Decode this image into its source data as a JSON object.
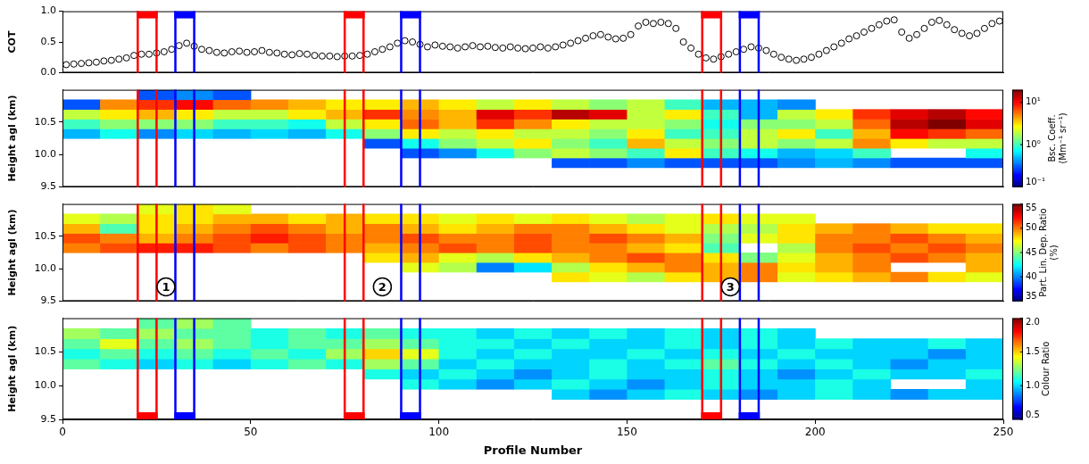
{
  "chart_data": [
    {
      "type": "scatter",
      "y_label": "COT",
      "tick_labels": "y",
      "marker": "circle",
      "color": "#000000",
      "xlim": [
        0,
        250
      ],
      "xticks": [
        0,
        50,
        100,
        150,
        200,
        250
      ],
      "ylim": [
        0,
        1
      ],
      "yticks": [
        {
          "value": 0,
          "label": "0.0"
        },
        0.5,
        {
          "value": 1,
          "label": "1.0"
        }
      ],
      "x": [
        1,
        3,
        5,
        7,
        9,
        11,
        13,
        15,
        17,
        19,
        21,
        23,
        25,
        27,
        29,
        31,
        33,
        35,
        37,
        39,
        41,
        43,
        45,
        47,
        49,
        51,
        53,
        55,
        57,
        59,
        61,
        63,
        65,
        67,
        69,
        71,
        73,
        75,
        77,
        79,
        81,
        83,
        85,
        87,
        89,
        91,
        93,
        95,
        97,
        99,
        101,
        103,
        105,
        107,
        109,
        111,
        113,
        115,
        117,
        119,
        121,
        123,
        125,
        127,
        129,
        131,
        133,
        135,
        137,
        139,
        141,
        143,
        145,
        147,
        149,
        151,
        153,
        155,
        157,
        159,
        161,
        163,
        165,
        167,
        169,
        171,
        173,
        175,
        177,
        179,
        181,
        183,
        185,
        187,
        189,
        191,
        193,
        195,
        197,
        199,
        201,
        203,
        205,
        207,
        209,
        211,
        213,
        215,
        217,
        219,
        221,
        223,
        225,
        227,
        229,
        231,
        233,
        235,
        237,
        239,
        241,
        243,
        245,
        247,
        249
      ],
      "values": [
        0.13,
        0.14,
        0.15,
        0.16,
        0.17,
        0.19,
        0.2,
        0.22,
        0.24,
        0.28,
        0.3,
        0.3,
        0.32,
        0.34,
        0.38,
        0.44,
        0.48,
        0.43,
        0.38,
        0.36,
        0.33,
        0.32,
        0.34,
        0.35,
        0.33,
        0.34,
        0.36,
        0.33,
        0.32,
        0.3,
        0.29,
        0.31,
        0.3,
        0.28,
        0.27,
        0.27,
        0.26,
        0.27,
        0.27,
        0.28,
        0.3,
        0.34,
        0.38,
        0.42,
        0.48,
        0.52,
        0.5,
        0.46,
        0.42,
        0.45,
        0.43,
        0.42,
        0.4,
        0.42,
        0.44,
        0.42,
        0.43,
        0.41,
        0.4,
        0.42,
        0.4,
        0.39,
        0.4,
        0.42,
        0.4,
        0.42,
        0.45,
        0.48,
        0.52,
        0.56,
        0.6,
        0.62,
        0.58,
        0.55,
        0.56,
        0.62,
        0.76,
        0.82,
        0.8,
        0.82,
        0.8,
        0.72,
        0.5,
        0.4,
        0.3,
        0.24,
        0.22,
        0.26,
        0.3,
        0.34,
        0.38,
        0.42,
        0.4,
        0.36,
        0.3,
        0.25,
        0.22,
        0.2,
        0.22,
        0.25,
        0.3,
        0.36,
        0.42,
        0.48,
        0.55,
        0.6,
        0.66,
        0.72,
        0.78,
        0.84,
        0.86,
        0.66,
        0.56,
        0.62,
        0.72,
        0.82,
        0.85,
        0.78,
        0.7,
        0.64,
        0.6,
        0.64,
        0.72,
        0.8,
        0.84
      ]
    },
    {
      "type": "heatmap",
      "y_label": "Height agl (km)",
      "tick_labels": "y",
      "xlim": [
        0,
        250
      ],
      "xticks": [
        0,
        50,
        100,
        150,
        200,
        250
      ],
      "ylim": [
        9.5,
        11.0
      ],
      "yticks": [
        9.5,
        {
          "value": 10,
          "label": "10.0"
        },
        10.5
      ],
      "x_bins": [
        0,
        10,
        20,
        30,
        40,
        50,
        60,
        70,
        80,
        90,
        100,
        110,
        120,
        130,
        140,
        150,
        160,
        170,
        180,
        190,
        200,
        210,
        220,
        230,
        240,
        250
      ],
      "y_bins": [
        9.8,
        9.95,
        10.1,
        10.25,
        10.4,
        10.55,
        10.7,
        10.85,
        11.0
      ],
      "cells": [
        [
          null,
          null,
          null,
          null,
          null,
          null,
          null,
          null,
          null,
          null,
          null,
          null,
          null,
          0.3,
          0.3,
          0.4,
          0.3,
          0.3,
          0.3,
          0.4,
          0.5,
          0.4,
          0.3,
          0.3,
          0.3
        ],
        [
          null,
          null,
          null,
          null,
          null,
          null,
          null,
          null,
          null,
          0.3,
          0.4,
          0.8,
          1.5,
          2,
          1.5,
          1,
          3,
          1,
          0.8,
          0.5,
          0.6,
          1,
          null,
          null,
          0.8
        ],
        [
          null,
          null,
          null,
          null,
          null,
          null,
          null,
          null,
          0.3,
          0.8,
          1.5,
          2,
          3,
          1.5,
          1,
          4,
          2,
          1.5,
          2,
          1.5,
          2,
          5,
          3,
          2,
          2
        ],
        [
          0.5,
          0.8,
          0.4,
          0.6,
          0.5,
          0.6,
          0.5,
          0.8,
          1.5,
          3,
          2,
          3,
          2,
          2,
          1.5,
          3,
          1,
          1,
          2,
          3,
          1,
          4,
          10,
          8,
          6
        ],
        [
          1,
          1.5,
          1.5,
          1.5,
          1,
          1,
          0.8,
          2,
          3,
          6,
          4,
          8,
          5,
          3,
          2,
          2,
          1.5,
          0.8,
          1.5,
          1.5,
          2,
          6,
          15,
          20,
          12
        ],
        [
          2,
          3,
          4,
          3,
          2,
          2,
          3,
          4,
          8,
          5,
          4,
          12,
          8,
          15,
          12,
          2,
          3,
          1,
          0.5,
          2,
          3,
          8,
          12,
          15,
          10
        ],
        [
          0.3,
          5,
          8,
          10,
          6,
          5,
          4,
          3,
          3,
          4,
          3,
          2,
          3,
          2,
          1.5,
          2,
          1,
          0.5,
          0.5,
          0.4,
          null,
          null,
          null,
          null,
          null
        ],
        [
          null,
          null,
          0.3,
          0.4,
          0.3,
          null,
          null,
          null,
          null,
          null,
          null,
          null,
          null,
          null,
          null,
          null,
          null,
          null,
          null,
          null,
          null,
          null,
          null,
          null,
          null
        ]
      ],
      "colorbar": {
        "label": "Bsc. Coeff. (Mm⁻¹ sr⁻¹)",
        "log": true,
        "range": [
          0.1,
          20
        ],
        "ticks": [
          {
            "value": 0.1,
            "label": "10⁻¹"
          },
          {
            "value": 1,
            "label": "10⁰"
          },
          {
            "value": 10,
            "label": "10¹"
          }
        ]
      }
    },
    {
      "type": "heatmap",
      "y_label": "Height agl (km)",
      "tick_labels": "y",
      "xlim": [
        0,
        250
      ],
      "xticks": [
        0,
        50,
        100,
        150,
        200,
        250
      ],
      "ylim": [
        9.5,
        11.0
      ],
      "yticks": [
        9.5,
        {
          "value": 10,
          "label": "10.0"
        },
        10.5
      ],
      "x_bins": [
        0,
        10,
        20,
        30,
        40,
        50,
        60,
        70,
        80,
        90,
        100,
        110,
        120,
        130,
        140,
        150,
        160,
        170,
        180,
        190,
        200,
        210,
        220,
        230,
        240,
        250
      ],
      "y_bins": [
        9.8,
        9.95,
        10.1,
        10.25,
        10.4,
        10.55,
        10.7,
        10.85,
        11.0
      ],
      "cells": [
        [
          null,
          null,
          null,
          null,
          null,
          null,
          null,
          null,
          null,
          null,
          null,
          null,
          null,
          48,
          47,
          46,
          48,
          49,
          50,
          47,
          48,
          49,
          50,
          48,
          47
        ],
        [
          null,
          null,
          null,
          null,
          null,
          null,
          null,
          null,
          null,
          47,
          46,
          40,
          42,
          46,
          48,
          49,
          50,
          49,
          50,
          48,
          49,
          50,
          null,
          null,
          49
        ],
        [
          null,
          null,
          null,
          null,
          null,
          null,
          null,
          null,
          48,
          49,
          47,
          46,
          48,
          49,
          50,
          51,
          50,
          48,
          45,
          47,
          49,
          50,
          51,
          50,
          49
        ],
        [
          50,
          51,
          52,
          52,
          51,
          50,
          51,
          50,
          49,
          50,
          51,
          50,
          51,
          50,
          50,
          49,
          48,
          44,
          null,
          46,
          50,
          51,
          50,
          51,
          50
        ],
        [
          51,
          50,
          49,
          50,
          51,
          52,
          51,
          50,
          50,
          51,
          50,
          50,
          51,
          50,
          51,
          50,
          49,
          45,
          47,
          48,
          50,
          50,
          51,
          50,
          49
        ],
        [
          49,
          44,
          48,
          49,
          50,
          51,
          50,
          49,
          50,
          49,
          48,
          49,
          50,
          50,
          49,
          48,
          47,
          46,
          46,
          48,
          49,
          50,
          49,
          48,
          48
        ],
        [
          47,
          46,
          48,
          48,
          49,
          49,
          48,
          49,
          48,
          48,
          47,
          48,
          47,
          48,
          47,
          46,
          47,
          48,
          47,
          47,
          null,
          null,
          null,
          null,
          null
        ],
        [
          null,
          null,
          47,
          48,
          47,
          null,
          null,
          null,
          null,
          null,
          null,
          null,
          null,
          null,
          null,
          null,
          null,
          null,
          null,
          null,
          null,
          null,
          null,
          null,
          null
        ]
      ],
      "annotations": [
        {
          "text": "1",
          "x": 27.5,
          "y": 9.72
        },
        {
          "text": "2",
          "x": 85,
          "y": 9.72
        },
        {
          "text": "3",
          "x": 177.5,
          "y": 9.72
        }
      ],
      "colorbar": {
        "label": "Part. Lin. Dep. Ratio (%)",
        "range": [
          35,
          55
        ],
        "ticks": [
          35,
          40,
          45,
          50,
          55
        ]
      }
    },
    {
      "type": "heatmap",
      "y_label": "Height agl (km)",
      "x_label": "Profile Number",
      "xlim": [
        0,
        250
      ],
      "xticks": [
        0,
        50,
        100,
        150,
        200,
        250
      ],
      "ylim": [
        9.5,
        11.0
      ],
      "yticks": [
        9.5,
        {
          "value": 10,
          "label": "10.0"
        },
        10.5
      ],
      "x_bins": [
        0,
        10,
        20,
        30,
        40,
        50,
        60,
        70,
        80,
        90,
        100,
        110,
        120,
        130,
        140,
        150,
        160,
        170,
        180,
        190,
        200,
        210,
        220,
        230,
        240,
        250
      ],
      "y_bins": [
        9.8,
        9.95,
        10.1,
        10.25,
        10.4,
        10.55,
        10.7,
        10.85,
        11.0
      ],
      "cells": [
        [
          null,
          null,
          null,
          null,
          null,
          null,
          null,
          null,
          null,
          null,
          null,
          null,
          null,
          1.0,
          0.9,
          1.0,
          1.1,
          1.0,
          0.9,
          1.0,
          1.1,
          1.0,
          0.9,
          1.0,
          1.0
        ],
        [
          null,
          null,
          null,
          null,
          null,
          null,
          null,
          null,
          null,
          1.1,
          1.0,
          0.9,
          1.0,
          1.1,
          1.0,
          0.9,
          1.0,
          1.1,
          1.0,
          1.0,
          1.1,
          1.0,
          null,
          null,
          1.0
        ],
        [
          null,
          null,
          null,
          null,
          null,
          null,
          null,
          null,
          1.1,
          1.0,
          1.1,
          1.0,
          0.9,
          1.0,
          1.1,
          1.0,
          1.0,
          1.1,
          1.0,
          0.9,
          1.0,
          1.1,
          1.0,
          1.0,
          1.1
        ],
        [
          1.2,
          1.1,
          1.0,
          1.1,
          1.0,
          1.1,
          1.2,
          1.1,
          1.3,
          1.2,
          1.0,
          1.1,
          1.0,
          1.0,
          1.1,
          1.0,
          1.1,
          1.2,
          1.1,
          1.0,
          1.1,
          1.0,
          0.9,
          1.0,
          1.0
        ],
        [
          1.1,
          1.2,
          1.1,
          1.2,
          1.1,
          1.2,
          1.1,
          1.3,
          1.5,
          1.4,
          1.1,
          1.0,
          1.1,
          1.0,
          1.0,
          1.1,
          1.0,
          1.1,
          1.0,
          1.1,
          1.0,
          1.0,
          1.0,
          0.9,
          1.0
        ],
        [
          1.2,
          1.4,
          1.2,
          1.3,
          1.2,
          1.1,
          1.2,
          1.2,
          1.3,
          1.2,
          1.1,
          1.1,
          1.0,
          1.1,
          1.0,
          1.0,
          1.1,
          1.0,
          1.1,
          1.0,
          1.1,
          1.0,
          1.0,
          1.1,
          1.0
        ],
        [
          1.3,
          1.2,
          1.3,
          1.2,
          1.2,
          1.1,
          1.2,
          1.1,
          1.2,
          1.1,
          1.1,
          1.0,
          1.1,
          1.0,
          1.1,
          1.0,
          1.1,
          1.0,
          1.1,
          1.0,
          null,
          null,
          null,
          null,
          null
        ],
        [
          null,
          null,
          1.2,
          1.3,
          1.2,
          null,
          null,
          null,
          null,
          null,
          null,
          null,
          null,
          null,
          null,
          null,
          null,
          null,
          null,
          null,
          null,
          null,
          null,
          null,
          null
        ]
      ],
      "colorbar": {
        "label": "Colour Ratio",
        "range": [
          0.5,
          2.0
        ],
        "ticks": [
          0.5,
          {
            "value": 1,
            "label": "1.0"
          },
          1.5,
          {
            "value": 2,
            "label": "2.0"
          }
        ]
      }
    }
  ],
  "highlight_boxes": [
    {
      "x": [
        20,
        25
      ],
      "color": "#ff0000"
    },
    {
      "x": [
        30,
        35
      ],
      "color": "#0000ff"
    },
    {
      "x": [
        75,
        80
      ],
      "color": "#ff0000"
    },
    {
      "x": [
        90,
        95
      ],
      "color": "#0000ff"
    },
    {
      "x": [
        170,
        175
      ],
      "color": "#ff0000"
    },
    {
      "x": [
        180,
        185
      ],
      "color": "#0000ff"
    }
  ]
}
